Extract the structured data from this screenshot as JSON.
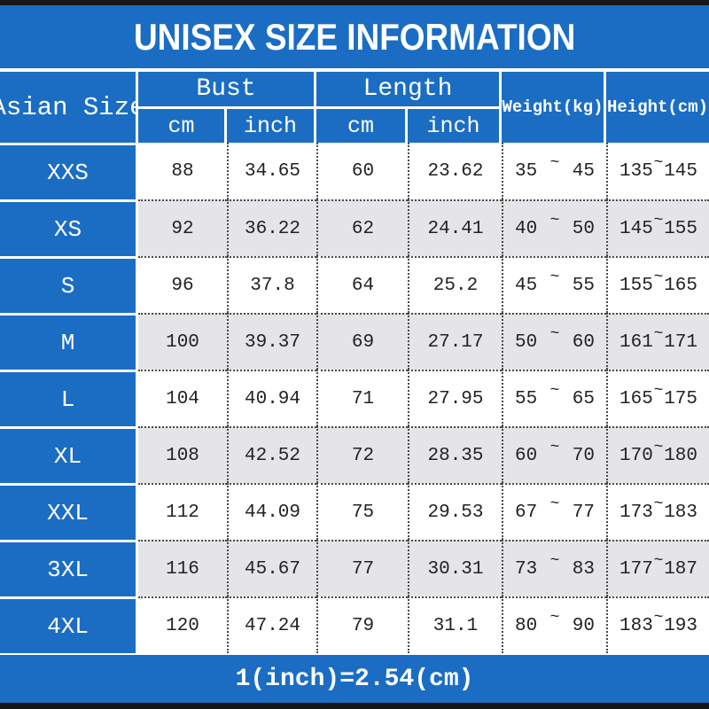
{
  "title": "UNISEX SIZE INFORMATION",
  "colors": {
    "blue": "#1b6dc4",
    "row_alt": "#e5e4e8",
    "bar": "#161616"
  },
  "footer": {
    "note": "1(inch)=2.54(cm)"
  },
  "table": {
    "size_col_header": "Asian Size",
    "bust_group": "Bust",
    "length_group": "Length",
    "weight_header": "Weight(kg)",
    "height_header": "Height(cm)",
    "sub_headers": [
      "cm",
      "inch",
      "cm",
      "inch"
    ],
    "tilde": "~",
    "rows": [
      {
        "size": "XXS",
        "bust_cm": "88",
        "bust_inch": "34.65",
        "length_cm": "60",
        "length_inch": "23.62",
        "weight": [
          "35",
          "45"
        ],
        "height": [
          "135",
          "145"
        ]
      },
      {
        "size": "XS",
        "bust_cm": "92",
        "bust_inch": "36.22",
        "length_cm": "62",
        "length_inch": "24.41",
        "weight": [
          "40",
          "50"
        ],
        "height": [
          "145",
          "155"
        ]
      },
      {
        "size": "S",
        "bust_cm": "96",
        "bust_inch": "37.8",
        "length_cm": "64",
        "length_inch": "25.2",
        "weight": [
          "45",
          "55"
        ],
        "height": [
          "155",
          "165"
        ]
      },
      {
        "size": "M",
        "bust_cm": "100",
        "bust_inch": "39.37",
        "length_cm": "69",
        "length_inch": "27.17",
        "weight": [
          "50",
          "60"
        ],
        "height": [
          "161",
          "171"
        ]
      },
      {
        "size": "L",
        "bust_cm": "104",
        "bust_inch": "40.94",
        "length_cm": "71",
        "length_inch": "27.95",
        "weight": [
          "55",
          "65"
        ],
        "height": [
          "165",
          "175"
        ]
      },
      {
        "size": "XL",
        "bust_cm": "108",
        "bust_inch": "42.52",
        "length_cm": "72",
        "length_inch": "28.35",
        "weight": [
          "60",
          "70"
        ],
        "height": [
          "170",
          "180"
        ]
      },
      {
        "size": "XXL",
        "bust_cm": "112",
        "bust_inch": "44.09",
        "length_cm": "75",
        "length_inch": "29.53",
        "weight": [
          "67",
          "77"
        ],
        "height": [
          "173",
          "183"
        ]
      },
      {
        "size": "3XL",
        "bust_cm": "116",
        "bust_inch": "45.67",
        "length_cm": "77",
        "length_inch": "30.31",
        "weight": [
          "73",
          "83"
        ],
        "height": [
          "177",
          "187"
        ]
      },
      {
        "size": "4XL",
        "bust_cm": "120",
        "bust_inch": "47.24",
        "length_cm": "79",
        "length_inch": "31.1",
        "weight": [
          "80",
          "90"
        ],
        "height": [
          "183",
          "193"
        ]
      }
    ]
  }
}
